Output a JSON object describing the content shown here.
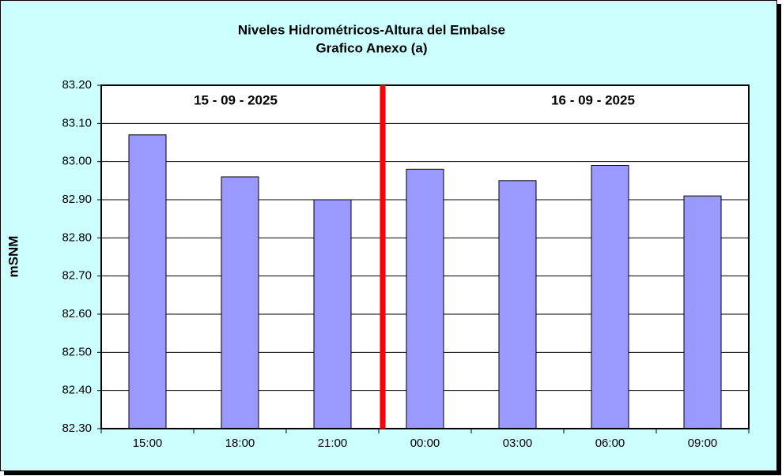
{
  "chart_data": {
    "type": "bar",
    "title": "Niveles Hidrométricos-Altura del Embalse",
    "subtitle": "Grafico Anexo (a)",
    "y_label": "mSNM",
    "annotations": [
      "15 - 09 - 2025",
      "16 - 09 - 2025"
    ],
    "categories": [
      "15:00",
      "18:00",
      "21:00",
      "00:00",
      "03:00",
      "06:00",
      "09:00"
    ],
    "values": [
      83.07,
      82.96,
      82.9,
      82.98,
      82.95,
      82.99,
      82.91
    ],
    "color": "#9999ff",
    "ylim": [
      82.3,
      83.2
    ],
    "yticks": [
      {
        "value": 82.3,
        "label": "82.30"
      },
      {
        "value": 82.4,
        "label": "82.40"
      },
      {
        "value": 82.5,
        "label": "82.50"
      },
      {
        "value": 82.6,
        "label": "82.60"
      },
      {
        "value": 82.7,
        "label": "82.70"
      },
      {
        "value": 82.8,
        "label": "82.80"
      },
      {
        "value": 82.9,
        "label": "82.90"
      },
      {
        "value": 83.0,
        "label": "83.00"
      },
      {
        "value": 83.1,
        "label": "83.10"
      },
      {
        "value": 83.2,
        "label": "83.20"
      }
    ],
    "grid": true
  }
}
